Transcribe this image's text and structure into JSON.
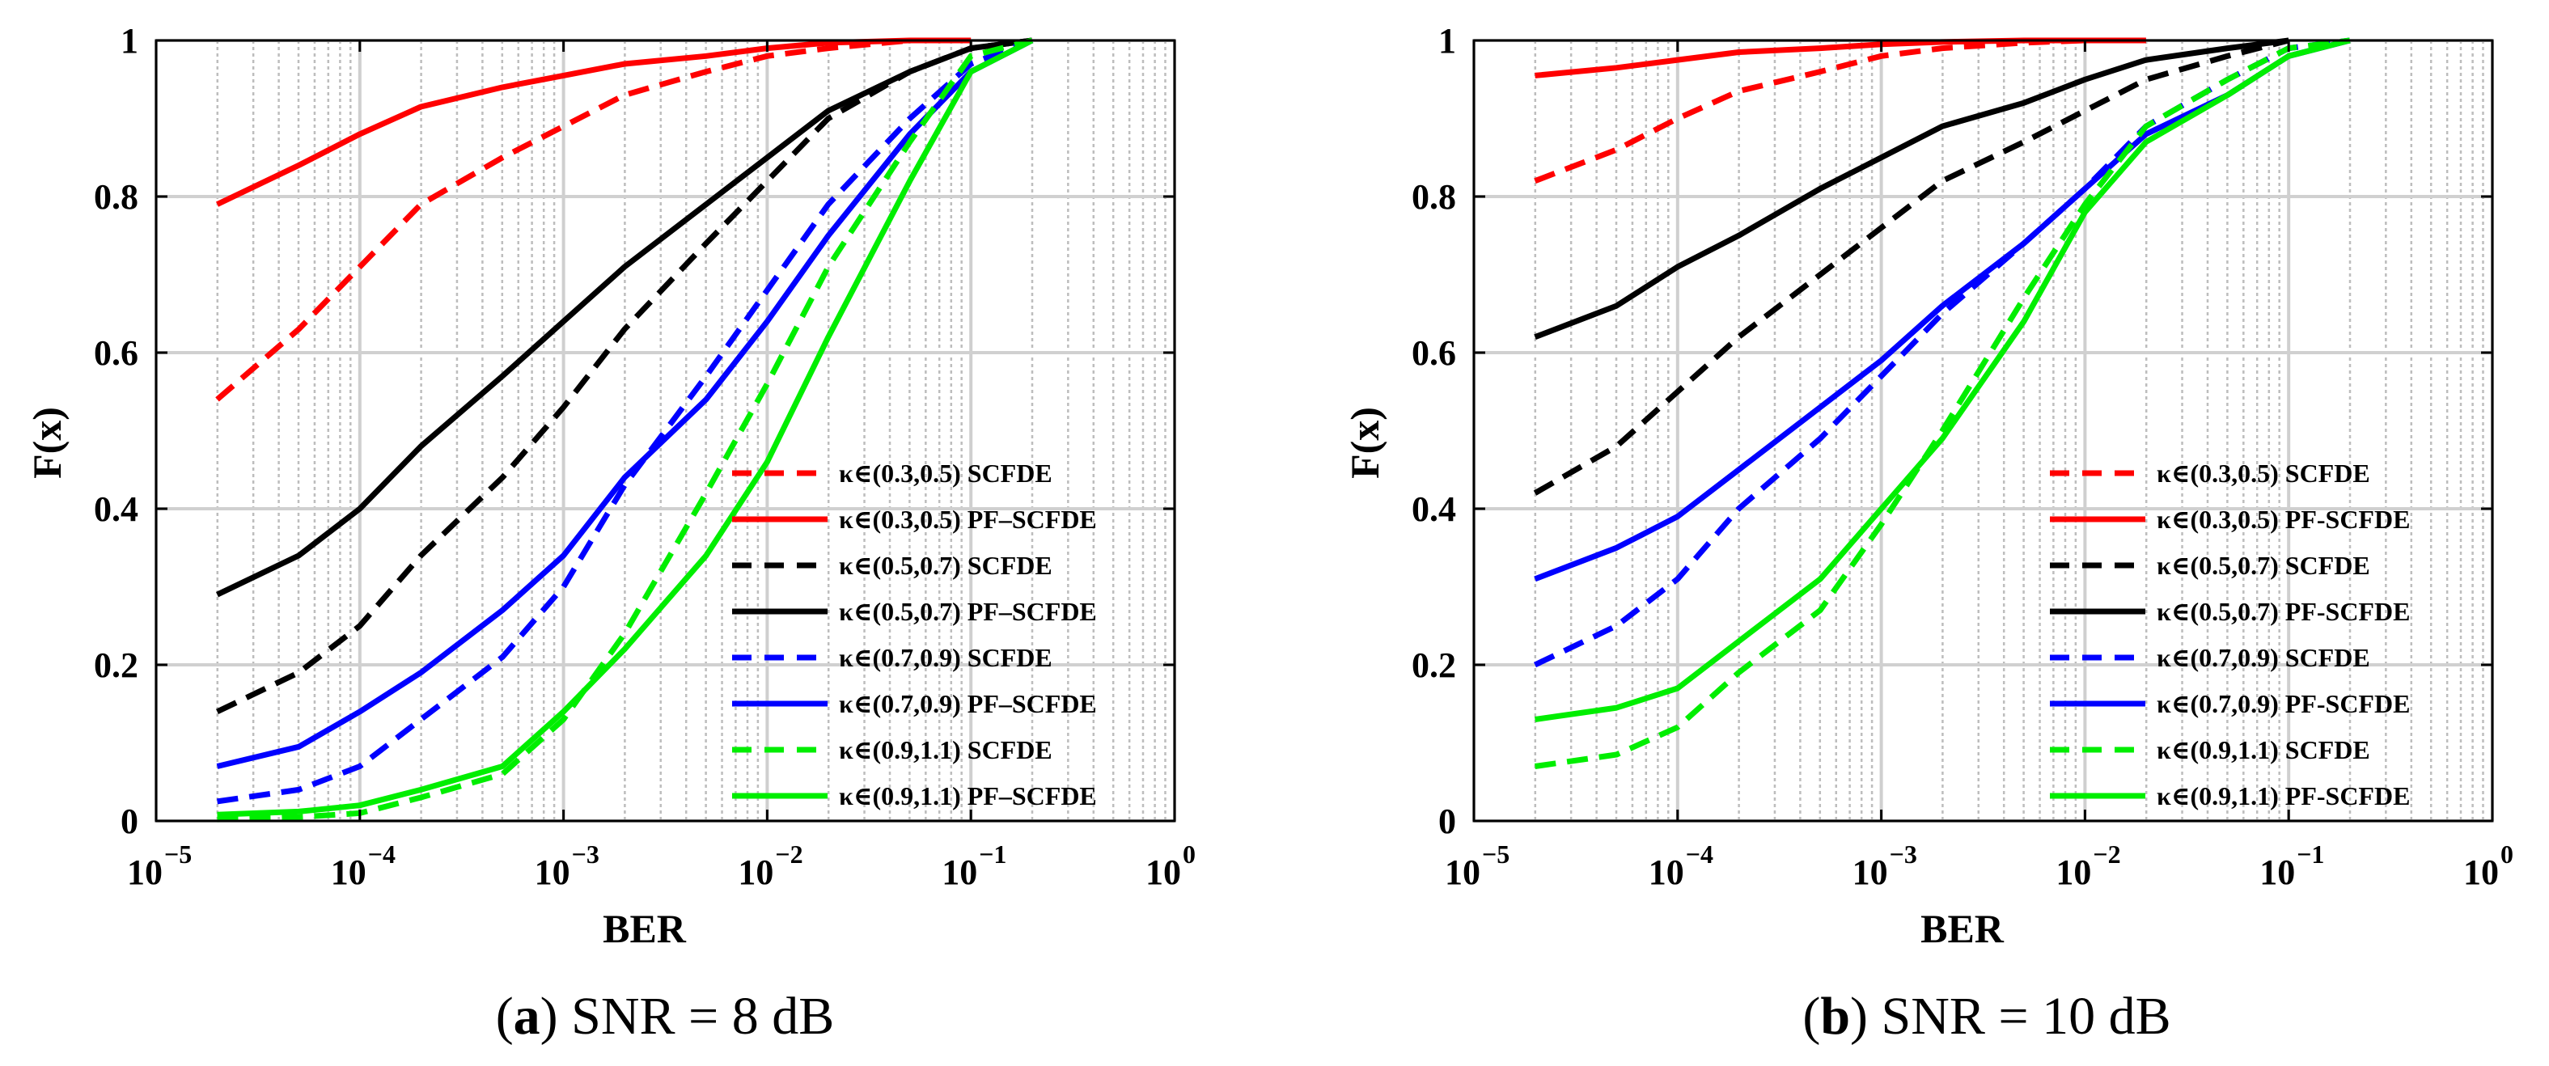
{
  "chart_data": [
    {
      "type": "line",
      "panel_id": "a",
      "caption_letter": "a",
      "caption_text": "SNR = 8 dB",
      "xlabel": "BER",
      "ylabel": "F(x)",
      "xscale": "log",
      "xlim": [
        1e-05,
        1
      ],
      "ylim": [
        0,
        1
      ],
      "grid": true,
      "legend_position": "lower-right",
      "x_ticks": [
        {
          "exp": -5,
          "base": "10",
          "power": "−5"
        },
        {
          "exp": -4,
          "base": "10",
          "power": "−4"
        },
        {
          "exp": -3,
          "base": "10",
          "power": "−3"
        },
        {
          "exp": -2,
          "base": "10",
          "power": "−2"
        },
        {
          "exp": -1,
          "base": "10",
          "power": "−1"
        },
        {
          "exp": 0,
          "base": "10",
          "power": "0"
        }
      ],
      "y_ticks": [
        {
          "value": 0,
          "label": "0"
        },
        {
          "value": 0.2,
          "label": "0.2"
        },
        {
          "value": 0.4,
          "label": "0.4"
        },
        {
          "value": 0.6,
          "label": "0.6"
        },
        {
          "value": 0.8,
          "label": "0.8"
        },
        {
          "value": 1,
          "label": "1"
        }
      ],
      "series": [
        {
          "name": "κ∈(0.3,0.5) SCFDE",
          "color": "#ff0000",
          "dashed": true,
          "points": [
            [
              -4.7,
              0.54
            ],
            [
              -4.3,
              0.63
            ],
            [
              -4.0,
              0.71
            ],
            [
              -3.7,
              0.79
            ],
            [
              -3.3,
              0.85
            ],
            [
              -3.0,
              0.89
            ],
            [
              -2.7,
              0.93
            ],
            [
              -2.3,
              0.96
            ],
            [
              -2.0,
              0.98
            ],
            [
              -1.7,
              0.99
            ],
            [
              -1.3,
              1.0
            ],
            [
              -1.0,
              1.0
            ]
          ]
        },
        {
          "name": "κ∈(0.3,0.5) PF–SCFDE",
          "color": "#ff0000",
          "dashed": false,
          "points": [
            [
              -4.7,
              0.79
            ],
            [
              -4.3,
              0.84
            ],
            [
              -4.0,
              0.88
            ],
            [
              -3.7,
              0.915
            ],
            [
              -3.3,
              0.94
            ],
            [
              -3.0,
              0.955
            ],
            [
              -2.7,
              0.97
            ],
            [
              -2.3,
              0.98
            ],
            [
              -2.0,
              0.99
            ],
            [
              -1.7,
              0.997
            ],
            [
              -1.3,
              1.0
            ],
            [
              -1.0,
              1.0
            ]
          ]
        },
        {
          "name": "κ∈(0.5,0.7) SCFDE",
          "color": "#000000",
          "dashed": true,
          "points": [
            [
              -4.7,
              0.14
            ],
            [
              -4.3,
              0.19
            ],
            [
              -4.0,
              0.25
            ],
            [
              -3.7,
              0.34
            ],
            [
              -3.3,
              0.44
            ],
            [
              -3.0,
              0.53
            ],
            [
              -2.7,
              0.63
            ],
            [
              -2.3,
              0.74
            ],
            [
              -2.0,
              0.82
            ],
            [
              -1.7,
              0.9
            ],
            [
              -1.3,
              0.96
            ],
            [
              -1.0,
              0.99
            ],
            [
              -0.7,
              1.0
            ]
          ]
        },
        {
          "name": "κ∈(0.5,0.7) PF–SCFDE",
          "color": "#000000",
          "dashed": false,
          "points": [
            [
              -4.7,
              0.29
            ],
            [
              -4.3,
              0.34
            ],
            [
              -4.0,
              0.4
            ],
            [
              -3.7,
              0.48
            ],
            [
              -3.3,
              0.57
            ],
            [
              -3.0,
              0.64
            ],
            [
              -2.7,
              0.71
            ],
            [
              -2.3,
              0.79
            ],
            [
              -2.0,
              0.85
            ],
            [
              -1.7,
              0.91
            ],
            [
              -1.3,
              0.96
            ],
            [
              -1.0,
              0.99
            ],
            [
              -0.7,
              1.0
            ]
          ]
        },
        {
          "name": "κ∈(0.7,0.9) SCFDE",
          "color": "#0000ff",
          "dashed": true,
          "points": [
            [
              -4.7,
              0.025
            ],
            [
              -4.3,
              0.04
            ],
            [
              -4.0,
              0.07
            ],
            [
              -3.7,
              0.13
            ],
            [
              -3.3,
              0.21
            ],
            [
              -3.0,
              0.3
            ],
            [
              -2.7,
              0.43
            ],
            [
              -2.3,
              0.57
            ],
            [
              -2.0,
              0.68
            ],
            [
              -1.7,
              0.79
            ],
            [
              -1.3,
              0.9
            ],
            [
              -1.0,
              0.97
            ],
            [
              -0.7,
              1.0
            ]
          ]
        },
        {
          "name": "κ∈(0.7,0.9) PF–SCFDE",
          "color": "#0000ff",
          "dashed": false,
          "points": [
            [
              -4.7,
              0.07
            ],
            [
              -4.3,
              0.095
            ],
            [
              -4.0,
              0.14
            ],
            [
              -3.7,
              0.19
            ],
            [
              -3.3,
              0.27
            ],
            [
              -3.0,
              0.34
            ],
            [
              -2.7,
              0.44
            ],
            [
              -2.3,
              0.54
            ],
            [
              -2.0,
              0.64
            ],
            [
              -1.7,
              0.75
            ],
            [
              -1.3,
              0.88
            ],
            [
              -1.0,
              0.96
            ],
            [
              -0.7,
              1.0
            ]
          ]
        },
        {
          "name": "κ∈(0.9,1.1) SCFDE",
          "color": "#00ee00",
          "dashed": true,
          "points": [
            [
              -4.7,
              0.002
            ],
            [
              -4.3,
              0.005
            ],
            [
              -4.0,
              0.01
            ],
            [
              -3.7,
              0.03
            ],
            [
              -3.3,
              0.06
            ],
            [
              -3.0,
              0.13
            ],
            [
              -2.7,
              0.24
            ],
            [
              -2.3,
              0.42
            ],
            [
              -2.0,
              0.56
            ],
            [
              -1.7,
              0.71
            ],
            [
              -1.3,
              0.87
            ],
            [
              -1.0,
              0.98
            ],
            [
              -0.7,
              1.0
            ]
          ]
        },
        {
          "name": "κ∈(0.9,1.1) PF–SCFDE",
          "color": "#00ee00",
          "dashed": false,
          "points": [
            [
              -4.7,
              0.008
            ],
            [
              -4.3,
              0.012
            ],
            [
              -4.0,
              0.02
            ],
            [
              -3.7,
              0.04
            ],
            [
              -3.3,
              0.07
            ],
            [
              -3.0,
              0.14
            ],
            [
              -2.7,
              0.22
            ],
            [
              -2.3,
              0.34
            ],
            [
              -2.0,
              0.46
            ],
            [
              -1.7,
              0.62
            ],
            [
              -1.3,
              0.82
            ],
            [
              -1.0,
              0.96
            ],
            [
              -0.7,
              1.0
            ]
          ]
        }
      ]
    },
    {
      "type": "line",
      "panel_id": "b",
      "caption_letter": "b",
      "caption_text": "SNR = 10 dB",
      "xlabel": "BER",
      "ylabel": "F(x)",
      "xscale": "log",
      "xlim": [
        1e-05,
        1
      ],
      "ylim": [
        0,
        1
      ],
      "grid": true,
      "legend_position": "lower-right",
      "x_ticks": [
        {
          "exp": -5,
          "base": "10",
          "power": "−5"
        },
        {
          "exp": -4,
          "base": "10",
          "power": "−4"
        },
        {
          "exp": -3,
          "base": "10",
          "power": "−3"
        },
        {
          "exp": -2,
          "base": "10",
          "power": "−2"
        },
        {
          "exp": -1,
          "base": "10",
          "power": "−1"
        },
        {
          "exp": 0,
          "base": "10",
          "power": "0"
        }
      ],
      "y_ticks": [
        {
          "value": 0,
          "label": "0"
        },
        {
          "value": 0.2,
          "label": "0.2"
        },
        {
          "value": 0.4,
          "label": "0.4"
        },
        {
          "value": 0.6,
          "label": "0.6"
        },
        {
          "value": 0.8,
          "label": "0.8"
        },
        {
          "value": 1,
          "label": "1"
        }
      ],
      "series": [
        {
          "name": "κ∈(0.3,0.5) SCFDE",
          "color": "#ff0000",
          "dashed": true,
          "points": [
            [
              -4.7,
              0.82
            ],
            [
              -4.3,
              0.86
            ],
            [
              -4.0,
              0.9
            ],
            [
              -3.7,
              0.935
            ],
            [
              -3.3,
              0.96
            ],
            [
              -3.0,
              0.98
            ],
            [
              -2.7,
              0.99
            ],
            [
              -2.3,
              0.997
            ],
            [
              -2.0,
              1.0
            ]
          ]
        },
        {
          "name": "κ∈(0.3,0.5) PF-SCFDE",
          "color": "#ff0000",
          "dashed": false,
          "points": [
            [
              -4.7,
              0.955
            ],
            [
              -4.3,
              0.965
            ],
            [
              -4.0,
              0.975
            ],
            [
              -3.7,
              0.985
            ],
            [
              -3.3,
              0.99
            ],
            [
              -3.0,
              0.995
            ],
            [
              -2.7,
              0.998
            ],
            [
              -2.3,
              1.0
            ],
            [
              -1.7,
              1.0
            ]
          ]
        },
        {
          "name": "κ∈(0.5,0.7) SCFDE",
          "color": "#000000",
          "dashed": true,
          "points": [
            [
              -4.7,
              0.42
            ],
            [
              -4.3,
              0.48
            ],
            [
              -4.0,
              0.55
            ],
            [
              -3.7,
              0.62
            ],
            [
              -3.3,
              0.7
            ],
            [
              -3.0,
              0.76
            ],
            [
              -2.7,
              0.82
            ],
            [
              -2.3,
              0.87
            ],
            [
              -2.0,
              0.91
            ],
            [
              -1.7,
              0.95
            ],
            [
              -1.3,
              0.98
            ],
            [
              -1.0,
              1.0
            ]
          ]
        },
        {
          "name": "κ∈(0.5,0.7) PF-SCFDE",
          "color": "#000000",
          "dashed": false,
          "points": [
            [
              -4.7,
              0.62
            ],
            [
              -4.3,
              0.66
            ],
            [
              -4.0,
              0.71
            ],
            [
              -3.7,
              0.75
            ],
            [
              -3.3,
              0.81
            ],
            [
              -3.0,
              0.85
            ],
            [
              -2.7,
              0.89
            ],
            [
              -2.3,
              0.92
            ],
            [
              -2.0,
              0.95
            ],
            [
              -1.7,
              0.975
            ],
            [
              -1.3,
              0.99
            ],
            [
              -1.0,
              1.0
            ]
          ]
        },
        {
          "name": "κ∈(0.7,0.9) SCFDE",
          "color": "#0000ff",
          "dashed": true,
          "points": [
            [
              -4.7,
              0.2
            ],
            [
              -4.3,
              0.25
            ],
            [
              -4.0,
              0.31
            ],
            [
              -3.7,
              0.4
            ],
            [
              -3.3,
              0.49
            ],
            [
              -3.0,
              0.57
            ],
            [
              -2.7,
              0.65
            ],
            [
              -2.3,
              0.74
            ],
            [
              -2.0,
              0.81
            ],
            [
              -1.7,
              0.89
            ],
            [
              -1.3,
              0.95
            ],
            [
              -1.0,
              0.99
            ],
            [
              -0.7,
              1.0
            ]
          ]
        },
        {
          "name": "κ∈(0.7,0.9) PF-SCFDE",
          "color": "#0000ff",
          "dashed": false,
          "points": [
            [
              -4.7,
              0.31
            ],
            [
              -4.3,
              0.35
            ],
            [
              -4.0,
              0.39
            ],
            [
              -3.7,
              0.45
            ],
            [
              -3.3,
              0.53
            ],
            [
              -3.0,
              0.59
            ],
            [
              -2.7,
              0.66
            ],
            [
              -2.3,
              0.74
            ],
            [
              -2.0,
              0.81
            ],
            [
              -1.7,
              0.88
            ],
            [
              -1.3,
              0.93
            ],
            [
              -1.0,
              0.98
            ],
            [
              -0.7,
              1.0
            ]
          ]
        },
        {
          "name": "κ∈(0.9,1.1) SCFDE",
          "color": "#00ee00",
          "dashed": true,
          "points": [
            [
              -4.7,
              0.07
            ],
            [
              -4.3,
              0.085
            ],
            [
              -4.0,
              0.12
            ],
            [
              -3.7,
              0.19
            ],
            [
              -3.3,
              0.27
            ],
            [
              -3.0,
              0.38
            ],
            [
              -2.7,
              0.5
            ],
            [
              -2.3,
              0.67
            ],
            [
              -2.0,
              0.79
            ],
            [
              -1.7,
              0.89
            ],
            [
              -1.3,
              0.95
            ],
            [
              -1.0,
              0.99
            ],
            [
              -0.7,
              1.0
            ]
          ]
        },
        {
          "name": "κ∈(0.9,1.1) PF-SCFDE",
          "color": "#00ee00",
          "dashed": false,
          "points": [
            [
              -4.7,
              0.13
            ],
            [
              -4.3,
              0.145
            ],
            [
              -4.0,
              0.17
            ],
            [
              -3.7,
              0.23
            ],
            [
              -3.3,
              0.31
            ],
            [
              -3.0,
              0.4
            ],
            [
              -2.7,
              0.49
            ],
            [
              -2.3,
              0.64
            ],
            [
              -2.0,
              0.78
            ],
            [
              -1.7,
              0.87
            ],
            [
              -1.3,
              0.93
            ],
            [
              -1.0,
              0.98
            ],
            [
              -0.7,
              1.0
            ]
          ]
        }
      ]
    }
  ]
}
